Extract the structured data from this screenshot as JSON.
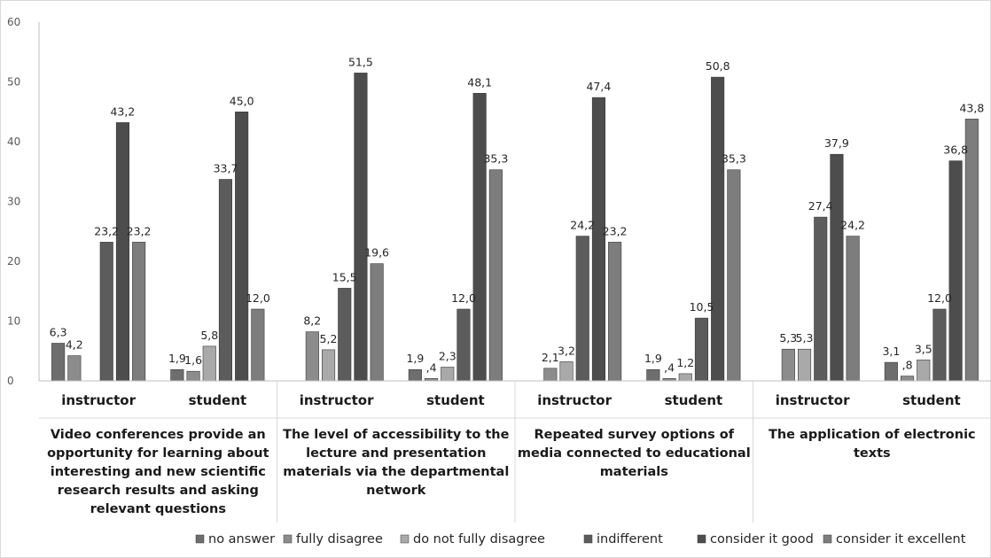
{
  "chart_data": {
    "type": "bar",
    "ylim": [
      0,
      60
    ],
    "yticks": [
      0,
      10,
      20,
      30,
      40,
      50,
      60
    ],
    "grid": false,
    "legend_position": "bottom",
    "series_names": [
      "no answer",
      "fully disagree",
      "do not fully disagree",
      "indifferent",
      "consider it good",
      "consider it excellent"
    ],
    "series_colors": [
      "#6e6e6e",
      "#8c8c8c",
      "#a9a9a9",
      "#5c5c5c",
      "#4d4d4d",
      "#7d7d7d"
    ],
    "groups": [
      {
        "question": [
          "Video conferences provide an",
          "opportunity for learning about",
          "interesting and new scientific",
          "research results and asking",
          "relevant questions"
        ],
        "subgroups": [
          {
            "role": "instructor",
            "values": [
              6.3,
              4.2,
              null,
              23.2,
              43.2,
              23.2
            ],
            "labels": [
              "6,3",
              "4,2",
              "",
              "23,2",
              "43,2",
              "23,2"
            ]
          },
          {
            "role": "student",
            "values": [
              1.9,
              1.6,
              5.8,
              33.7,
              45.0,
              12.0
            ],
            "labels": [
              "1,9",
              "1,6",
              "5,8",
              "33,7",
              "45,0",
              "12,0"
            ]
          }
        ]
      },
      {
        "question": [
          "The level of accessibility to the",
          "lecture and presentation",
          "materials via the departmental",
          "network"
        ],
        "subgroups": [
          {
            "role": "instructor",
            "values": [
              null,
              8.2,
              5.2,
              15.5,
              51.5,
              19.6
            ],
            "labels": [
              "",
              "8,2",
              "5,2",
              "15,5",
              "51,5",
              "19,6"
            ]
          },
          {
            "role": "student",
            "values": [
              1.9,
              0.4,
              2.3,
              12.0,
              48.1,
              35.3
            ],
            "labels": [
              "1,9",
              ",4",
              "2,3",
              "12,0",
              "48,1",
              "35,3"
            ]
          }
        ]
      },
      {
        "question": [
          "Repeated survey options of",
          "media connected to educational",
          "materials"
        ],
        "subgroups": [
          {
            "role": "instructor",
            "values": [
              null,
              2.1,
              3.2,
              24.2,
              47.4,
              23.2
            ],
            "labels": [
              "",
              "2,1",
              "3,2",
              "24,2",
              "47,4",
              "23,2"
            ]
          },
          {
            "role": "student",
            "values": [
              1.9,
              0.4,
              1.2,
              10.5,
              50.8,
              35.3
            ],
            "labels": [
              "1,9",
              ",4",
              "1,2",
              "10,5",
              "50,8",
              "35,3"
            ]
          }
        ]
      },
      {
        "question": [
          "The application of electronic",
          "texts"
        ],
        "subgroups": [
          {
            "role": "instructor",
            "values": [
              null,
              5.3,
              5.3,
              27.4,
              37.9,
              24.2
            ],
            "labels": [
              "",
              "5,3",
              "5,3",
              "27,4",
              "37,9",
              "24,2"
            ]
          },
          {
            "role": "student",
            "values": [
              3.1,
              0.8,
              3.5,
              12.0,
              36.8,
              43.8
            ],
            "labels": [
              "3,1",
              ",8",
              "3,5",
              "12,0",
              "36,8",
              "43,8"
            ]
          }
        ]
      }
    ]
  }
}
